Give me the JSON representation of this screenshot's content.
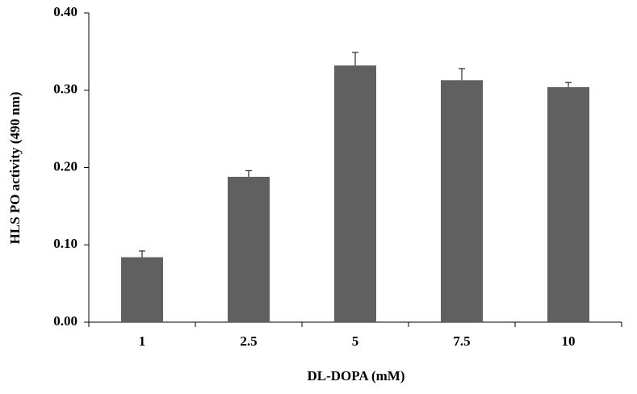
{
  "chart_data": {
    "type": "bar",
    "x_label": "DL-DOPA (mM)",
    "y_label": "HLS PO activity (490 nm)",
    "categories": [
      "1",
      "2.5",
      "5",
      "7.5",
      "10"
    ],
    "values": [
      0.084,
      0.188,
      0.332,
      0.313,
      0.304
    ],
    "errors": [
      0.008,
      0.008,
      0.017,
      0.015,
      0.006
    ],
    "color": "#606060",
    "ylim": [
      0,
      0.4
    ],
    "yticks": [
      {
        "value": 0,
        "label": "0.00"
      },
      {
        "value": 0.1,
        "label": "0.10"
      },
      {
        "value": 0.2,
        "label": "0.20"
      },
      {
        "value": 0.3,
        "label": "0.30"
      },
      {
        "value": 0.4,
        "label": "0.40"
      }
    ]
  }
}
